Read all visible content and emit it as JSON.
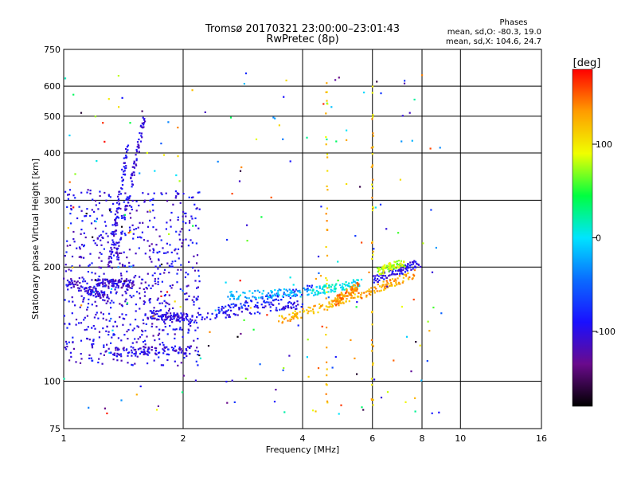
{
  "chart_data": {
    "type": "scatter",
    "title": "Tromsø 20170321 23:00:00–23:01:43",
    "subtitle": "RwPretec (8p)",
    "xlabel": "Frequency [MHz]",
    "ylabel": "Stationary phase Virtual Height [km]",
    "x_scale": "log",
    "y_scale": "log",
    "xlim": [
      1,
      16
    ],
    "ylim": [
      75,
      750
    ],
    "x_ticks": [
      1,
      2,
      4,
      6,
      8,
      10,
      16
    ],
    "y_ticks": [
      75,
      100,
      200,
      300,
      400,
      500,
      600,
      750
    ],
    "grid": true,
    "stats": {
      "heading": "Phases",
      "line1": "mean, sd,O: -80.3, 19.0",
      "line2": "mean, sd,X: 104.6, 24.7"
    },
    "colorbar": {
      "label": "[deg]",
      "range": [
        -180,
        180
      ],
      "ticks": [
        100,
        0,
        -100
      ],
      "colors": [
        "#000000",
        "#6a0a8c",
        "#1a10ff",
        "#0a6bff",
        "#00e4ff",
        "#00ff40",
        "#f0ff00",
        "#ff9c00",
        "#ff0000"
      ]
    },
    "traces": [
      {
        "x": [
          1.25,
          2.1
        ],
        "y": [
          120,
          121
        ],
        "phase": -105
      },
      {
        "x": [
          1.2,
          1.5
        ],
        "y": [
          182,
          180
        ],
        "phase": -110
      },
      {
        "x": [
          1.0,
          1.3
        ],
        "y": [
          185,
          165
        ],
        "phase": -108
      },
      {
        "x": [
          1.35,
          1.6
        ],
        "y": [
          210,
          500
        ],
        "phase": -100
      },
      {
        "x": [
          1.3,
          1.45
        ],
        "y": [
          200,
          420
        ],
        "phase": -100
      },
      {
        "x": [
          1.6,
          2.05
        ],
        "y": [
          150,
          147
        ],
        "phase": -100
      },
      {
        "x": [
          2.05,
          4.0
        ],
        "y": [
          145,
          160
        ],
        "phase": -95
      },
      {
        "x": [
          2.4,
          4.2
        ],
        "y": [
          152,
          175
        ],
        "phase": -85
      },
      {
        "x": [
          3.5,
          5.5
        ],
        "y": [
          145,
          168
        ],
        "phase": 125
      },
      {
        "x": [
          5.5,
          7.7
        ],
        "y": [
          168,
          192
        ],
        "phase": 130
      },
      {
        "x": [
          6.0,
          7.9
        ],
        "y": [
          185,
          205
        ],
        "phase": -100
      },
      {
        "x": [
          2.6,
          4.3
        ],
        "y": [
          168,
          172
        ],
        "phase": -20
      },
      {
        "x": [
          4.2,
          5.6
        ],
        "y": [
          172,
          182
        ],
        "phase": 5
      },
      {
        "x": [
          6.2,
          7.2
        ],
        "y": [
          195,
          205
        ],
        "phase": 80
      },
      {
        "x": [
          4.8,
          5.5
        ],
        "y": [
          162,
          178
        ],
        "phase": 140
      }
    ]
  }
}
